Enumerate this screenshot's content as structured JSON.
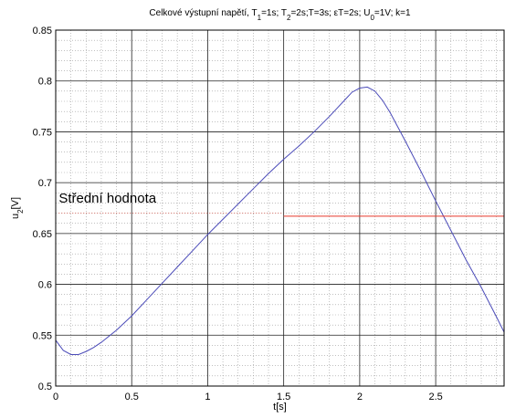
{
  "chart_data": {
    "type": "line",
    "title": {
      "segments": [
        {
          "t": "Celkové výstupní napětí, T",
          "s": "n"
        },
        {
          "t": "1",
          "s": "sub"
        },
        {
          "t": "=1s; T",
          "s": "n"
        },
        {
          "t": "2",
          "s": "sub"
        },
        {
          "t": "=2s;T=3s; εT=2s; U",
          "s": "n"
        },
        {
          "t": "0",
          "s": "sub"
        },
        {
          "t": "=1V; k=1",
          "s": "n"
        }
      ]
    },
    "xlabel": "t[s]",
    "ylabel": {
      "segments": [
        {
          "t": "u",
          "s": "n"
        },
        {
          "t": "2",
          "s": "sub"
        },
        {
          "t": "[V]",
          "s": "n"
        }
      ]
    },
    "xlim": [
      0,
      2.95
    ],
    "ylim": [
      0.5,
      0.85
    ],
    "xticks": [
      0,
      0.5,
      1,
      1.5,
      2,
      2.5
    ],
    "xtick_labels": [
      "0",
      "0.5",
      "1",
      "1.5",
      "2",
      "2.5"
    ],
    "yticks": [
      0.5,
      0.55,
      0.6,
      0.65,
      0.7,
      0.75,
      0.8,
      0.85
    ],
    "ytick_labels": [
      "0.5",
      "0.55",
      "0.6",
      "0.65",
      "0.7",
      "0.75",
      "0.8",
      "0.85"
    ],
    "minor_grid_step_x": 0.1,
    "minor_grid_step_y": 0.01,
    "grid": true,
    "series": [
      {
        "color": "#4a4ab8",
        "x": [
          0,
          0.05,
          0.1,
          0.15,
          0.2,
          0.25,
          0.3,
          0.4,
          0.5,
          0.6,
          0.7,
          0.8,
          0.9,
          1.0,
          1.1,
          1.2,
          1.3,
          1.4,
          1.5,
          1.6,
          1.7,
          1.8,
          1.85,
          1.9,
          1.95,
          2.0,
          2.05,
          2.1,
          2.15,
          2.2,
          2.3,
          2.4,
          2.5,
          2.6,
          2.7,
          2.8,
          2.9,
          2.95
        ],
        "y": [
          0.545,
          0.535,
          0.531,
          0.531,
          0.534,
          0.538,
          0.543,
          0.555,
          0.569,
          0.585,
          0.601,
          0.617,
          0.633,
          0.649,
          0.664,
          0.679,
          0.694,
          0.709,
          0.723,
          0.736,
          0.75,
          0.765,
          0.773,
          0.781,
          0.789,
          0.793,
          0.794,
          0.79,
          0.781,
          0.769,
          0.741,
          0.712,
          0.682,
          0.653,
          0.624,
          0.597,
          0.568,
          0.553
        ]
      },
      {
        "color": "#e8392b",
        "x": [
          1.5,
          2.95
        ],
        "y": [
          0.667,
          0.667
        ]
      }
    ],
    "annotations": [
      {
        "text": "Střední hodnota",
        "x": 0.02,
        "y": 0.675
      }
    ],
    "reference_line": {
      "color": "#e8392b",
      "y": 0.67,
      "x0": 0.02,
      "x1": 1.5
    }
  }
}
